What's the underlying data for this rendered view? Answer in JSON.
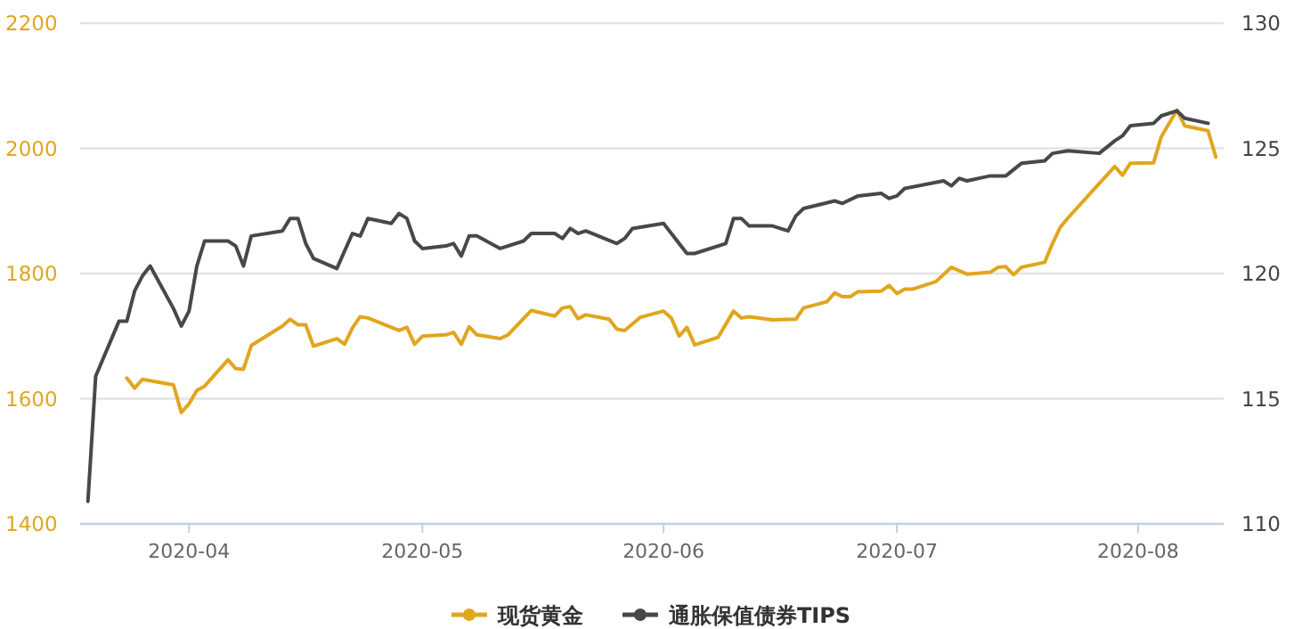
{
  "chart_data": {
    "type": "line",
    "series": [
      {
        "name": "现货黄金",
        "color": "#e0a61e",
        "axis": "y",
        "x": [
          "2020-03-24",
          "2020-03-25",
          "2020-03-26",
          "2020-03-30",
          "2020-03-31",
          "2020-04-01",
          "2020-04-02",
          "2020-04-03",
          "2020-04-06",
          "2020-04-07",
          "2020-04-08",
          "2020-04-09",
          "2020-04-13",
          "2020-04-14",
          "2020-04-15",
          "2020-04-16",
          "2020-04-17",
          "2020-04-20",
          "2020-04-21",
          "2020-04-22",
          "2020-04-23",
          "2020-04-24",
          "2020-04-28",
          "2020-04-29",
          "2020-04-30",
          "2020-05-01",
          "2020-05-04",
          "2020-05-05",
          "2020-05-06",
          "2020-05-07",
          "2020-05-08",
          "2020-05-11",
          "2020-05-12",
          "2020-05-15",
          "2020-05-18",
          "2020-05-19",
          "2020-05-20",
          "2020-05-21",
          "2020-05-22",
          "2020-05-25",
          "2020-05-26",
          "2020-05-27",
          "2020-05-29",
          "2020-06-01",
          "2020-06-02",
          "2020-06-03",
          "2020-06-04",
          "2020-06-05",
          "2020-06-08",
          "2020-06-10",
          "2020-06-11",
          "2020-06-12",
          "2020-06-15",
          "2020-06-18",
          "2020-06-19",
          "2020-06-22",
          "2020-06-23",
          "2020-06-24",
          "2020-06-25",
          "2020-06-26",
          "2020-06-29",
          "2020-06-30",
          "2020-07-01",
          "2020-07-02",
          "2020-07-03",
          "2020-07-06",
          "2020-07-08",
          "2020-07-10",
          "2020-07-13",
          "2020-07-14",
          "2020-07-15",
          "2020-07-16",
          "2020-07-17",
          "2020-07-20",
          "2020-07-21",
          "2020-07-22",
          "2020-07-23",
          "2020-07-29",
          "2020-07-30",
          "2020-07-31",
          "2020-08-03",
          "2020-08-04",
          "2020-08-06",
          "2020-08-07",
          "2020-08-10",
          "2020-08-11"
        ],
        "values": [
          1633,
          1617,
          1631,
          1622,
          1578,
          1592,
          1613,
          1620,
          1662,
          1648,
          1647,
          1685,
          1716,
          1727,
          1718,
          1718,
          1684,
          1696,
          1687,
          1713,
          1731,
          1729,
          1709,
          1714,
          1687,
          1700,
          1702,
          1706,
          1687,
          1715,
          1702,
          1696,
          1702,
          1741,
          1732,
          1745,
          1747,
          1728,
          1734,
          1727,
          1711,
          1709,
          1730,
          1740,
          1729,
          1700,
          1714,
          1686,
          1698,
          1740,
          1729,
          1731,
          1726,
          1727,
          1745,
          1755,
          1769,
          1763,
          1763,
          1771,
          1772,
          1781,
          1768,
          1775,
          1775,
          1787,
          1810,
          1799,
          1802,
          1810,
          1811,
          1798,
          1810,
          1818,
          1848,
          1874,
          1889,
          1971,
          1957,
          1976,
          1977,
          2019,
          2061,
          2036,
          2028,
          1986
        ]
      },
      {
        "name": "通胀保值债券TIPS",
        "color": "#484848",
        "axis": "y2",
        "x": [
          "2020-03-19",
          "2020-03-20",
          "2020-03-23",
          "2020-03-24",
          "2020-03-25",
          "2020-03-26",
          "2020-03-27",
          "2020-03-30",
          "2020-03-31",
          "2020-04-01",
          "2020-04-02",
          "2020-04-03",
          "2020-04-06",
          "2020-04-07",
          "2020-04-08",
          "2020-04-09",
          "2020-04-13",
          "2020-04-14",
          "2020-04-15",
          "2020-04-16",
          "2020-04-17",
          "2020-04-20",
          "2020-04-22",
          "2020-04-23",
          "2020-04-24",
          "2020-04-27",
          "2020-04-28",
          "2020-04-29",
          "2020-04-30",
          "2020-05-01",
          "2020-05-04",
          "2020-05-05",
          "2020-05-06",
          "2020-05-07",
          "2020-05-08",
          "2020-05-11",
          "2020-05-14",
          "2020-05-15",
          "2020-05-18",
          "2020-05-19",
          "2020-05-20",
          "2020-05-21",
          "2020-05-22",
          "2020-05-26",
          "2020-05-27",
          "2020-05-28",
          "2020-06-01",
          "2020-06-02",
          "2020-06-04",
          "2020-06-05",
          "2020-06-09",
          "2020-06-10",
          "2020-06-11",
          "2020-06-12",
          "2020-06-15",
          "2020-06-17",
          "2020-06-18",
          "2020-06-19",
          "2020-06-23",
          "2020-06-24",
          "2020-06-26",
          "2020-06-29",
          "2020-06-30",
          "2020-07-01",
          "2020-07-02",
          "2020-07-07",
          "2020-07-08",
          "2020-07-09",
          "2020-07-10",
          "2020-07-13",
          "2020-07-15",
          "2020-07-17",
          "2020-07-20",
          "2020-07-21",
          "2020-07-23",
          "2020-07-27",
          "2020-07-29",
          "2020-07-30",
          "2020-07-31",
          "2020-08-03",
          "2020-08-04",
          "2020-08-06",
          "2020-08-07",
          "2020-08-10"
        ],
        "values": [
          110.9,
          115.9,
          118.1,
          118.1,
          119.3,
          119.9,
          120.3,
          118.6,
          117.9,
          118.5,
          120.3,
          121.3,
          121.3,
          121.1,
          120.3,
          121.5,
          121.7,
          122.2,
          122.2,
          121.2,
          120.6,
          120.2,
          121.6,
          121.5,
          122.2,
          122.0,
          122.4,
          122.2,
          121.3,
          121.0,
          121.1,
          121.2,
          120.7,
          121.5,
          121.5,
          121.0,
          121.3,
          121.6,
          121.6,
          121.4,
          121.8,
          121.6,
          121.7,
          121.2,
          121.4,
          121.8,
          122.0,
          121.6,
          120.8,
          120.8,
          121.2,
          122.2,
          122.2,
          121.9,
          121.9,
          121.7,
          122.3,
          122.6,
          122.9,
          122.8,
          123.1,
          123.2,
          123.0,
          123.1,
          123.4,
          123.7,
          123.5,
          123.8,
          123.7,
          123.9,
          123.9,
          124.4,
          124.5,
          124.8,
          124.9,
          124.8,
          125.3,
          125.5,
          125.9,
          126.0,
          126.3,
          126.5,
          126.2,
          126.0
        ]
      }
    ],
    "xlim": [
      "2020-03-18",
      "2020-08-12"
    ],
    "xticks": [
      "2020-04",
      "2020-05",
      "2020-06",
      "2020-07",
      "2020-08"
    ],
    "ylim": [
      1400,
      2200
    ],
    "yticks": [
      1400,
      1600,
      1800,
      2000,
      2200
    ],
    "y2lim": [
      110,
      130
    ],
    "y2ticks": [
      110,
      115,
      120,
      125,
      130
    ],
    "grid": "y",
    "legend": "bottom"
  }
}
